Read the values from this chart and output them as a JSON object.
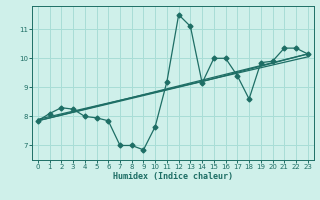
{
  "xlabel": "Humidex (Indice chaleur)",
  "bg_color": "#cff0ea",
  "line_color": "#1e6e65",
  "grid_color": "#a8ddd6",
  "xlim": [
    -0.5,
    23.5
  ],
  "ylim": [
    6.5,
    11.8
  ],
  "xticks": [
    0,
    1,
    2,
    3,
    4,
    5,
    6,
    7,
    8,
    9,
    10,
    11,
    12,
    13,
    14,
    15,
    16,
    17,
    18,
    19,
    20,
    21,
    22,
    23
  ],
  "yticks": [
    7,
    8,
    9,
    10,
    11
  ],
  "line1_x": [
    0,
    1,
    2,
    3,
    4,
    5,
    6,
    7,
    8,
    9,
    10,
    11,
    12,
    13,
    14,
    15,
    16,
    17,
    18,
    19,
    20,
    21,
    22,
    23
  ],
  "line1_y": [
    7.85,
    8.1,
    8.3,
    8.25,
    8.0,
    7.95,
    7.85,
    7.0,
    7.0,
    6.85,
    7.65,
    9.2,
    11.5,
    11.1,
    9.15,
    10.0,
    10.0,
    9.4,
    8.6,
    9.85,
    9.9,
    10.35,
    10.35,
    10.15
  ],
  "trend1_x": [
    0,
    23
  ],
  "trend1_y": [
    7.85,
    10.15
  ],
  "trend2_x": [
    0,
    23
  ],
  "trend2_y": [
    7.9,
    10.05
  ],
  "trend3_x": [
    0,
    14,
    23
  ],
  "trend3_y": [
    7.85,
    9.2,
    10.15
  ],
  "markersize": 2.5,
  "linewidth": 0.9,
  "trend_linewidth": 0.9,
  "tick_fontsize": 5,
  "xlabel_fontsize": 6
}
